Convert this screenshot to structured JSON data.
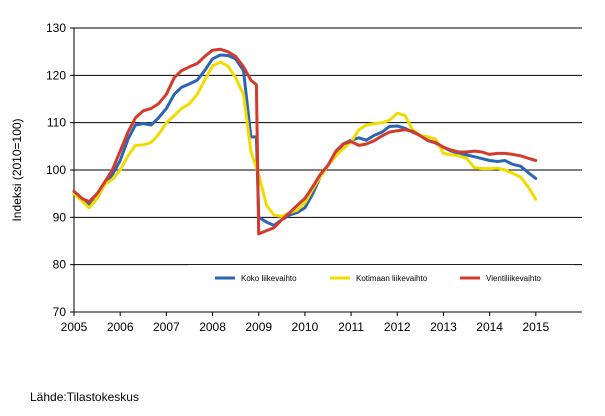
{
  "chart_data": {
    "type": "line",
    "ylabel": "Indeksi (2010=100)",
    "xlim": [
      2005,
      2016
    ],
    "ylim": [
      70,
      130
    ],
    "yticks": [
      70,
      80,
      90,
      100,
      110,
      120,
      130
    ],
    "xticks": [
      "2005",
      "2006",
      "2007",
      "2008",
      "2009",
      "2010",
      "2011",
      "2012",
      "2013",
      "2014",
      "2015"
    ],
    "grid": true,
    "legend": "inside-bottom",
    "series": [
      {
        "name": "Koko liikevaihto",
        "color": "#2e64b4",
        "points": [
          [
            2005.0,
            95
          ],
          [
            2005.17,
            94
          ],
          [
            2005.33,
            92.5
          ],
          [
            2005.5,
            94
          ],
          [
            2005.67,
            97
          ],
          [
            2005.83,
            99
          ],
          [
            2006.0,
            102
          ],
          [
            2006.17,
            106.5
          ],
          [
            2006.33,
            109.5
          ],
          [
            2006.5,
            109.8
          ],
          [
            2006.67,
            109.5
          ],
          [
            2006.83,
            111
          ],
          [
            2007.0,
            113
          ],
          [
            2007.17,
            116
          ],
          [
            2007.33,
            117.5
          ],
          [
            2007.5,
            118.2
          ],
          [
            2007.67,
            119
          ],
          [
            2007.83,
            121
          ],
          [
            2008.0,
            123.5
          ],
          [
            2008.17,
            124.3
          ],
          [
            2008.33,
            124.2
          ],
          [
            2008.5,
            123.5
          ],
          [
            2008.67,
            121
          ],
          [
            2008.83,
            107
          ],
          [
            2008.95,
            107
          ],
          [
            2009.0,
            90
          ],
          [
            2009.17,
            89
          ],
          [
            2009.33,
            88.3
          ],
          [
            2009.5,
            89.5
          ],
          [
            2009.67,
            90.5
          ],
          [
            2009.83,
            91
          ],
          [
            2010.0,
            92
          ],
          [
            2010.17,
            95
          ],
          [
            2010.33,
            98.5
          ],
          [
            2010.5,
            101
          ],
          [
            2010.67,
            103
          ],
          [
            2010.83,
            105.5
          ],
          [
            2011.0,
            106.3
          ],
          [
            2011.17,
            106.8
          ],
          [
            2011.33,
            106.3
          ],
          [
            2011.5,
            107.3
          ],
          [
            2011.67,
            108
          ],
          [
            2011.83,
            109.2
          ],
          [
            2012.0,
            109.3
          ],
          [
            2012.17,
            108.8
          ],
          [
            2012.33,
            108
          ],
          [
            2012.5,
            107.3
          ],
          [
            2012.67,
            106.2
          ],
          [
            2012.83,
            105.7
          ],
          [
            2013.0,
            104.8
          ],
          [
            2013.17,
            104
          ],
          [
            2013.33,
            103.5
          ],
          [
            2013.5,
            103.2
          ],
          [
            2013.67,
            102.8
          ],
          [
            2013.83,
            102.4
          ],
          [
            2014.0,
            102.0
          ],
          [
            2014.17,
            101.8
          ],
          [
            2014.33,
            102.0
          ],
          [
            2014.5,
            101.2
          ],
          [
            2014.67,
            100.8
          ],
          [
            2014.83,
            99.5
          ],
          [
            2015.0,
            98.2
          ]
        ]
      },
      {
        "name": "Kotimaan liikevaihto",
        "color": "#f0dc00",
        "points": [
          [
            2005.0,
            95
          ],
          [
            2005.17,
            93.5
          ],
          [
            2005.33,
            92
          ],
          [
            2005.5,
            94
          ],
          [
            2005.67,
            97
          ],
          [
            2005.83,
            98
          ],
          [
            2006.0,
            100
          ],
          [
            2006.17,
            103
          ],
          [
            2006.33,
            105.2
          ],
          [
            2006.5,
            105.3
          ],
          [
            2006.67,
            105.8
          ],
          [
            2006.83,
            107.5
          ],
          [
            2007.0,
            110
          ],
          [
            2007.17,
            111.5
          ],
          [
            2007.33,
            113
          ],
          [
            2007.5,
            114
          ],
          [
            2007.67,
            116
          ],
          [
            2007.83,
            119
          ],
          [
            2008.0,
            122
          ],
          [
            2008.17,
            122.8
          ],
          [
            2008.33,
            122
          ],
          [
            2008.5,
            119.5
          ],
          [
            2008.67,
            116
          ],
          [
            2008.83,
            104
          ],
          [
            2009.0,
            99
          ],
          [
            2009.17,
            92.5
          ],
          [
            2009.33,
            90.5
          ],
          [
            2009.5,
            90.2
          ],
          [
            2009.67,
            91
          ],
          [
            2009.83,
            91.5
          ],
          [
            2010.0,
            93
          ],
          [
            2010.17,
            96
          ],
          [
            2010.33,
            98.5
          ],
          [
            2010.5,
            101
          ],
          [
            2010.67,
            103
          ],
          [
            2010.83,
            104.5
          ],
          [
            2011.0,
            106
          ],
          [
            2011.17,
            108.5
          ],
          [
            2011.33,
            109.5
          ],
          [
            2011.5,
            109.8
          ],
          [
            2011.67,
            110
          ],
          [
            2011.83,
            110.5
          ],
          [
            2012.0,
            112
          ],
          [
            2012.17,
            111.5
          ],
          [
            2012.33,
            108.5
          ],
          [
            2012.5,
            107.3
          ],
          [
            2012.67,
            107
          ],
          [
            2012.83,
            106.5
          ],
          [
            2013.0,
            103.5
          ],
          [
            2013.17,
            103.2
          ],
          [
            2013.33,
            103
          ],
          [
            2013.5,
            102.5
          ],
          [
            2013.67,
            100.5
          ],
          [
            2013.83,
            100.3
          ],
          [
            2014.0,
            100.3
          ],
          [
            2014.17,
            100.4
          ],
          [
            2014.33,
            100.0
          ],
          [
            2014.5,
            99.3
          ],
          [
            2014.67,
            98.5
          ],
          [
            2014.83,
            96.5
          ],
          [
            2015.0,
            93.8
          ]
        ]
      },
      {
        "name": "Vientiliikevaihto",
        "color": "#d23c2d",
        "points": [
          [
            2005.0,
            95.5
          ],
          [
            2005.17,
            94
          ],
          [
            2005.33,
            93.3
          ],
          [
            2005.5,
            95
          ],
          [
            2005.67,
            97.5
          ],
          [
            2005.83,
            100
          ],
          [
            2006.0,
            104
          ],
          [
            2006.17,
            108
          ],
          [
            2006.33,
            111
          ],
          [
            2006.5,
            112.5
          ],
          [
            2006.67,
            113
          ],
          [
            2006.83,
            114
          ],
          [
            2007.0,
            116
          ],
          [
            2007.17,
            119.5
          ],
          [
            2007.33,
            121
          ],
          [
            2007.5,
            121.8
          ],
          [
            2007.67,
            122.5
          ],
          [
            2007.83,
            124
          ],
          [
            2008.0,
            125.3
          ],
          [
            2008.17,
            125.5
          ],
          [
            2008.33,
            125
          ],
          [
            2008.5,
            124
          ],
          [
            2008.67,
            121.8
          ],
          [
            2008.83,
            119
          ],
          [
            2008.95,
            118
          ],
          [
            2009.0,
            86.5
          ],
          [
            2009.17,
            87.2
          ],
          [
            2009.33,
            87.8
          ],
          [
            2009.5,
            89.5
          ],
          [
            2009.67,
            91
          ],
          [
            2009.83,
            92.5
          ],
          [
            2010.0,
            94
          ],
          [
            2010.17,
            96.5
          ],
          [
            2010.33,
            99
          ],
          [
            2010.5,
            101
          ],
          [
            2010.67,
            104
          ],
          [
            2010.83,
            105.5
          ],
          [
            2011.0,
            106
          ],
          [
            2011.17,
            105.2
          ],
          [
            2011.33,
            105.5
          ],
          [
            2011.5,
            106.2
          ],
          [
            2011.67,
            107.2
          ],
          [
            2011.83,
            108
          ],
          [
            2012.0,
            108.3
          ],
          [
            2012.17,
            108.5
          ],
          [
            2012.33,
            108.2
          ],
          [
            2012.5,
            107.2
          ],
          [
            2012.67,
            106.2
          ],
          [
            2012.83,
            105.8
          ],
          [
            2013.0,
            104.8
          ],
          [
            2013.17,
            104.2
          ],
          [
            2013.33,
            103.8
          ],
          [
            2013.5,
            103.8
          ],
          [
            2013.67,
            104.0
          ],
          [
            2013.83,
            103.8
          ],
          [
            2014.0,
            103.3
          ],
          [
            2014.17,
            103.5
          ],
          [
            2014.33,
            103.5
          ],
          [
            2014.5,
            103.3
          ],
          [
            2014.67,
            103
          ],
          [
            2014.83,
            102.5
          ],
          [
            2015.0,
            102
          ]
        ]
      }
    ]
  },
  "source": "Lähde:Tilastokeskus"
}
